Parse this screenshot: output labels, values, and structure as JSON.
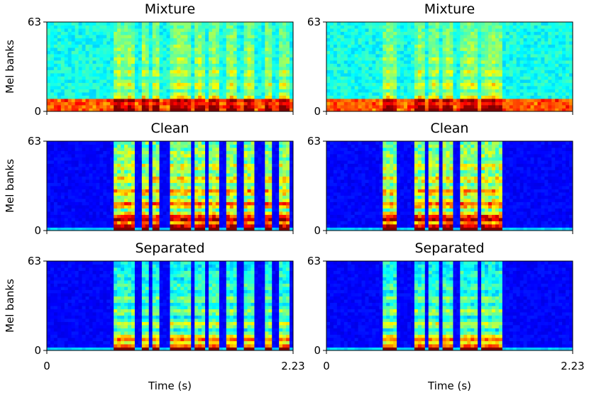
{
  "chart_data": [
    {
      "type": "spectrogram",
      "title": "Mixture",
      "ylabel": "Mel banks",
      "xlim": [
        0,
        2.23
      ],
      "ylim": [
        0,
        63
      ],
      "yticks": [
        0,
        63
      ]
    },
    {
      "type": "spectrogram",
      "title": "Mixture",
      "xlim": [
        0,
        2.23
      ],
      "ylim": [
        0,
        63
      ],
      "yticks": [
        0,
        63
      ]
    },
    {
      "type": "spectrogram",
      "title": "Clean",
      "ylabel": "Mel banks",
      "xlim": [
        0,
        2.23
      ],
      "ylim": [
        0,
        63
      ],
      "yticks": [
        0,
        63
      ]
    },
    {
      "type": "spectrogram",
      "title": "Clean",
      "xlim": [
        0,
        2.23
      ],
      "ylim": [
        0,
        63
      ],
      "yticks": [
        0,
        63
      ]
    },
    {
      "type": "spectrogram",
      "title": "Separated",
      "ylabel": "Mel banks",
      "xlabel": "Time (s)",
      "xlim": [
        0,
        2.23
      ],
      "ylim": [
        0,
        63
      ],
      "yticks": [
        0,
        63
      ],
      "xticks": [
        0,
        2.23
      ]
    },
    {
      "type": "spectrogram",
      "title": "Separated",
      "xlabel": "Time (s)",
      "xlim": [
        0,
        2.23
      ],
      "ylim": [
        0,
        63
      ],
      "yticks": [
        0,
        63
      ],
      "xticks": [
        0,
        2.23
      ]
    }
  ]
}
